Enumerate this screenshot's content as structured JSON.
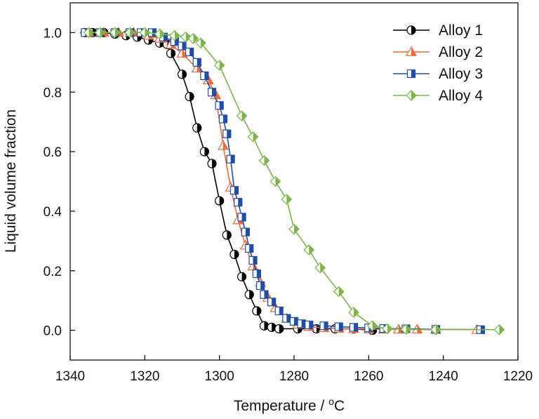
{
  "chart_data": {
    "type": "line",
    "x_axis": {
      "label_main": "Temperature / ",
      "label_sup": "o",
      "label_unit": "C",
      "range": [
        1340,
        1220
      ],
      "ticks": [
        1340,
        1320,
        1300,
        1280,
        1260,
        1240,
        1220
      ],
      "tick_labels": [
        "1340",
        "1320",
        "1300",
        "1280",
        "1260",
        "1240",
        "1220"
      ]
    },
    "y_axis": {
      "label": "Liquid volume fraction",
      "range": [
        -0.1,
        1.1
      ],
      "ticks": [
        0.0,
        0.2,
        0.4,
        0.6,
        0.8,
        1.0
      ],
      "tick_labels": [
        "0.0",
        "0.2",
        "0.4",
        "0.6",
        "0.8",
        "1.0"
      ]
    },
    "legend_position": "top-right",
    "grid": false,
    "series": [
      {
        "name": "Alloy 1",
        "color": "#000000",
        "marker": "half-circle",
        "x": [
          1336,
          1334,
          1331,
          1328,
          1325,
          1322,
          1319,
          1316,
          1314,
          1313,
          1310,
          1308,
          1306,
          1304,
          1302,
          1300,
          1298,
          1296,
          1294,
          1292,
          1290,
          1288,
          1286,
          1284,
          1279,
          1274,
          1269,
          1264,
          1259
        ],
        "y": [
          1.0,
          1.0,
          1.0,
          0.995,
          0.99,
          0.985,
          0.975,
          0.965,
          0.96,
          0.93,
          0.86,
          0.785,
          0.68,
          0.6,
          0.56,
          0.435,
          0.32,
          0.255,
          0.18,
          0.12,
          0.065,
          0.015,
          0.01,
          0.005,
          0.005,
          0.005,
          0.005,
          0.005,
          0.0
        ]
      },
      {
        "name": "Alloy 2",
        "color": "#f26a3a",
        "marker": "half-triangle",
        "x": [
          1335,
          1331,
          1327,
          1323,
          1319,
          1316,
          1313,
          1310,
          1306,
          1303,
          1301,
          1299,
          1297,
          1295,
          1293,
          1291,
          1289,
          1287,
          1285,
          1282,
          1279,
          1276,
          1272,
          1268,
          1264,
          1260,
          1256,
          1252,
          1247,
          1242,
          1231
        ],
        "y": [
          1.0,
          1.0,
          1.0,
          1.0,
          0.99,
          0.98,
          0.96,
          0.93,
          0.88,
          0.84,
          0.79,
          0.62,
          0.48,
          0.37,
          0.285,
          0.215,
          0.16,
          0.11,
          0.075,
          0.04,
          0.02,
          0.012,
          0.008,
          0.006,
          0.005,
          0.004,
          0.003,
          0.003,
          0.003,
          0.002,
          0.002
        ]
      },
      {
        "name": "Alloy 3",
        "color": "#1f4ea8",
        "marker": "half-square",
        "x": [
          1336,
          1332,
          1328,
          1324,
          1321,
          1318,
          1315,
          1312,
          1310,
          1308,
          1306,
          1304,
          1302,
          1300,
          1299,
          1298,
          1297,
          1296,
          1295,
          1294,
          1293,
          1292,
          1291,
          1290,
          1289,
          1288,
          1286,
          1284,
          1282,
          1280,
          1278,
          1276,
          1272,
          1268,
          1264,
          1260,
          1256,
          1250,
          1242,
          1230
        ],
        "y": [
          1.0,
          1.0,
          1.0,
          1.0,
          1.0,
          1.0,
          0.985,
          0.97,
          0.955,
          0.935,
          0.9,
          0.855,
          0.8,
          0.755,
          0.71,
          0.66,
          0.575,
          0.47,
          0.43,
          0.38,
          0.33,
          0.275,
          0.235,
          0.19,
          0.15,
          0.12,
          0.095,
          0.065,
          0.04,
          0.03,
          0.022,
          0.018,
          0.015,
          0.012,
          0.01,
          0.008,
          0.006,
          0.005,
          0.003,
          0.002
        ]
      },
      {
        "name": "Alloy 4",
        "color": "#7ab648",
        "marker": "half-diamond",
        "x": [
          1335,
          1332,
          1328,
          1324,
          1320,
          1316,
          1312,
          1309,
          1307,
          1305,
          1300,
          1294,
          1291,
          1288,
          1285,
          1282,
          1280,
          1276,
          1273,
          1268,
          1264,
          1259,
          1255,
          1250,
          1242,
          1225
        ],
        "y": [
          1.0,
          1.0,
          1.0,
          1.0,
          1.0,
          0.995,
          0.99,
          0.985,
          0.98,
          0.965,
          0.89,
          0.72,
          0.65,
          0.57,
          0.5,
          0.44,
          0.34,
          0.27,
          0.21,
          0.13,
          0.06,
          0.015,
          0.005,
          0.003,
          0.002,
          0.002
        ]
      }
    ]
  }
}
